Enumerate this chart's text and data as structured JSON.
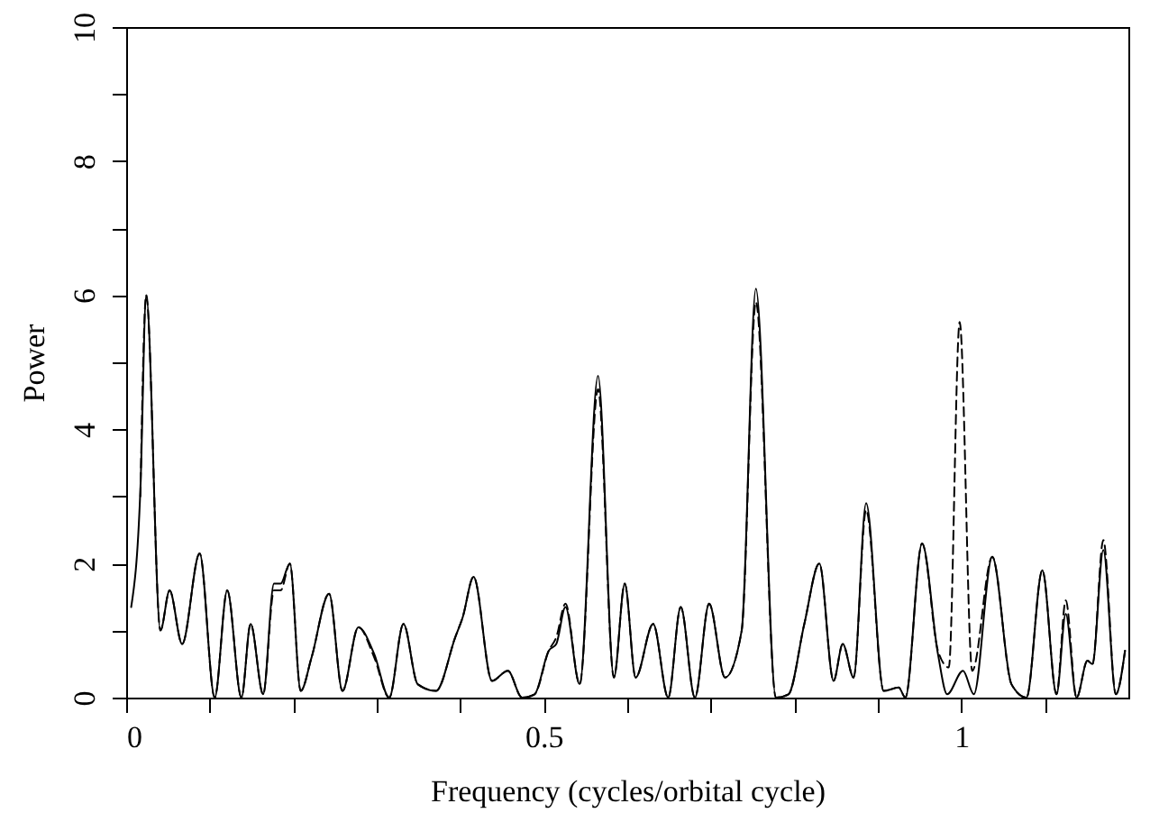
{
  "chart_data": {
    "type": "line",
    "xlabel": "Frequency (cycles/orbital cycle)",
    "ylabel": "Power",
    "xlim": [
      0,
      1.2
    ],
    "ylim": [
      0,
      10
    ],
    "xticks": [
      0,
      {
        "value": 0.1,
        "label": null
      },
      {
        "value": 0.2,
        "label": null
      },
      {
        "value": 0.3,
        "label": null
      },
      {
        "value": 0.4,
        "label": null
      },
      0.5,
      {
        "value": 0.6,
        "label": null
      },
      {
        "value": 0.7,
        "label": null
      },
      {
        "value": 0.8,
        "label": null
      },
      {
        "value": 0.9,
        "label": null
      },
      1,
      {
        "value": 1.1,
        "label": null
      }
    ],
    "yticks": [
      0,
      {
        "value": 1,
        "label": null
      },
      2,
      {
        "value": 3,
        "label": null
      },
      4,
      {
        "value": 5,
        "label": null
      },
      6,
      {
        "value": 7,
        "label": null
      },
      8,
      {
        "value": 9,
        "label": null
      },
      10
    ],
    "grid": false,
    "marker": "none",
    "series": [
      {
        "color": "#000000",
        "line_style": "solid",
        "x": [
          0.006,
          0.017,
          0.024,
          0.041,
          0.052,
          0.067,
          0.088,
          0.106,
          0.121,
          0.138,
          0.149,
          0.164,
          0.177,
          0.185,
          0.196,
          0.209,
          0.222,
          0.243,
          0.259,
          0.278,
          0.297,
          0.315,
          0.332,
          0.349,
          0.371,
          0.394,
          0.403,
          0.416,
          0.438,
          0.457,
          0.474,
          0.489,
          0.506,
          0.515,
          0.526,
          0.543,
          0.565,
          0.584,
          0.597,
          0.61,
          0.631,
          0.649,
          0.664,
          0.681,
          0.698,
          0.717,
          0.737,
          0.754,
          0.778,
          0.793,
          0.812,
          0.83,
          0.847,
          0.858,
          0.871,
          0.886,
          0.907,
          0.925,
          0.933,
          0.953,
          0.972,
          0.983,
          1.002,
          1.015,
          1.037,
          1.06,
          1.078,
          1.097,
          1.114,
          1.125,
          1.138,
          1.151,
          1.157,
          1.17,
          1.185,
          1.196
        ],
        "values": [
          1.35,
          3.1,
          6.0,
          1.0,
          1.6,
          0.8,
          2.15,
          0,
          1.6,
          0,
          1.1,
          0.05,
          1.7,
          1.7,
          2.0,
          0.1,
          0.6,
          1.55,
          0.1,
          1.05,
          0.65,
          0,
          1.1,
          0.2,
          0.1,
          0.9,
          1.2,
          1.8,
          0.25,
          0.4,
          0,
          0.05,
          0.7,
          0.8,
          1.35,
          0.2,
          4.8,
          0.3,
          1.7,
          0.3,
          1.1,
          0,
          1.35,
          0,
          1.4,
          0.3,
          1.0,
          6.1,
          0,
          0.05,
          1.1,
          2.0,
          0.25,
          0.8,
          0.3,
          2.9,
          0.1,
          0.15,
          0,
          2.3,
          0.65,
          0.05,
          0.4,
          0.05,
          2.1,
          0.2,
          0,
          1.9,
          0.05,
          1.25,
          0,
          0.55,
          0.5,
          2.2,
          0.05,
          0.7
        ]
      },
      {
        "color": "#000000",
        "line_style": "dashed",
        "x": [
          0.017,
          0.024,
          0.041,
          0.052,
          0.067,
          0.088,
          0.106,
          0.121,
          0.138,
          0.149,
          0.164,
          0.177,
          0.185,
          0.196,
          0.209,
          0.222,
          0.243,
          0.259,
          0.278,
          0.297,
          0.315,
          0.332,
          0.349,
          0.371,
          0.394,
          0.403,
          0.416,
          0.438,
          0.457,
          0.474,
          0.489,
          0.506,
          0.515,
          0.526,
          0.543,
          0.565,
          0.584,
          0.597,
          0.61,
          0.631,
          0.649,
          0.664,
          0.681,
          0.698,
          0.717,
          0.737,
          0.754,
          0.778,
          0.793,
          0.812,
          0.83,
          0.847,
          0.858,
          0.871,
          0.886,
          0.907,
          0.925,
          0.933,
          0.953,
          0.972,
          0.985,
          0.998,
          1.013,
          1.037,
          1.06,
          1.078,
          1.097,
          1.114,
          1.125,
          1.138,
          1.151,
          1.157,
          1.17,
          1.185,
          1.196
        ],
        "values": [
          3.0,
          6.0,
          1.0,
          1.6,
          0.8,
          2.15,
          0,
          1.6,
          0,
          1.1,
          0.05,
          1.6,
          1.6,
          2.0,
          0.1,
          0.6,
          1.55,
          0.1,
          1.05,
          0.6,
          0,
          1.1,
          0.2,
          0.1,
          0.9,
          1.2,
          1.8,
          0.25,
          0.4,
          0,
          0.05,
          0.7,
          0.9,
          1.4,
          0.2,
          4.6,
          0.3,
          1.7,
          0.3,
          1.1,
          0,
          1.35,
          0,
          1.4,
          0.3,
          1.0,
          5.9,
          0,
          0.05,
          1.1,
          2.0,
          0.25,
          0.8,
          0.3,
          2.8,
          0.1,
          0.15,
          0,
          2.3,
          0.7,
          0.45,
          5.6,
          0.4,
          2.1,
          0.2,
          0,
          1.9,
          0.05,
          1.45,
          0,
          0.55,
          0.5,
          2.35,
          0.05,
          0.7
        ]
      }
    ]
  }
}
